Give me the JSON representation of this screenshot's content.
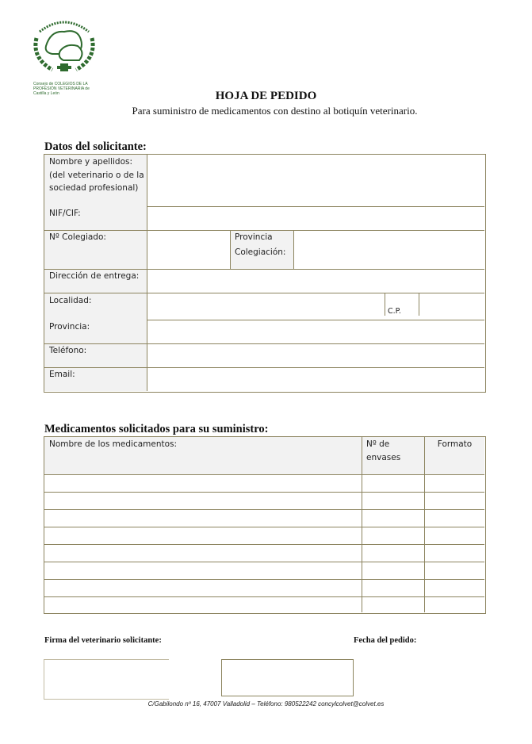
{
  "logo": {
    "arc_text": "MEDICINAE CURAE SALUS POPULI",
    "org_text": "Consejo de COLEGIOS DE LA PROFESIÓN VETERINARIA de Castilla y León",
    "color": "#2e6b2e"
  },
  "header": {
    "title": "HOJA DE PEDIDO",
    "subtitle": "Para suministro de medicamentos con destino al botiquín veterinario."
  },
  "applicant": {
    "section_title": "Datos del solicitante:",
    "labels": {
      "name": "Nombre y apellidos:",
      "name_note_1": "(del veterinario o de la",
      "name_note_2": "sociedad profesional)",
      "nif": "NIF/CIF:",
      "colegiado": "Nº Colegiado:",
      "provincia_col_1": "Provincia",
      "provincia_col_2": "Colegiación:",
      "direccion": "Dirección de entrega:",
      "localidad": "Localidad:",
      "cp": "C.P.",
      "provincia": "Provincia:",
      "telefono": "Teléfono:",
      "email": "Email:"
    }
  },
  "medicines": {
    "section_title": "Medicamentos solicitados para su suministro:",
    "columns": [
      "Nombre de los medicamentos:",
      "Nº de envases",
      "Formato"
    ],
    "rows": [
      [
        "",
        "",
        ""
      ],
      [
        "",
        "",
        ""
      ],
      [
        "",
        "",
        ""
      ],
      [
        "",
        "",
        ""
      ],
      [
        "",
        "",
        ""
      ],
      [
        "",
        "",
        ""
      ],
      [
        "",
        "",
        ""
      ],
      [
        "",
        "",
        ""
      ]
    ]
  },
  "signature": {
    "firma_label": "Firma del veterinario solicitante:",
    "fecha_label": "Fecha del pedido:"
  },
  "footer": {
    "address": "C/Gabilondo nº 16,  47007 Valladolid – Teléfono: 980522242 concylcolvet@colvet.es"
  },
  "colors": {
    "border": "#8c845f",
    "label_bg": "#f2f2f2"
  }
}
